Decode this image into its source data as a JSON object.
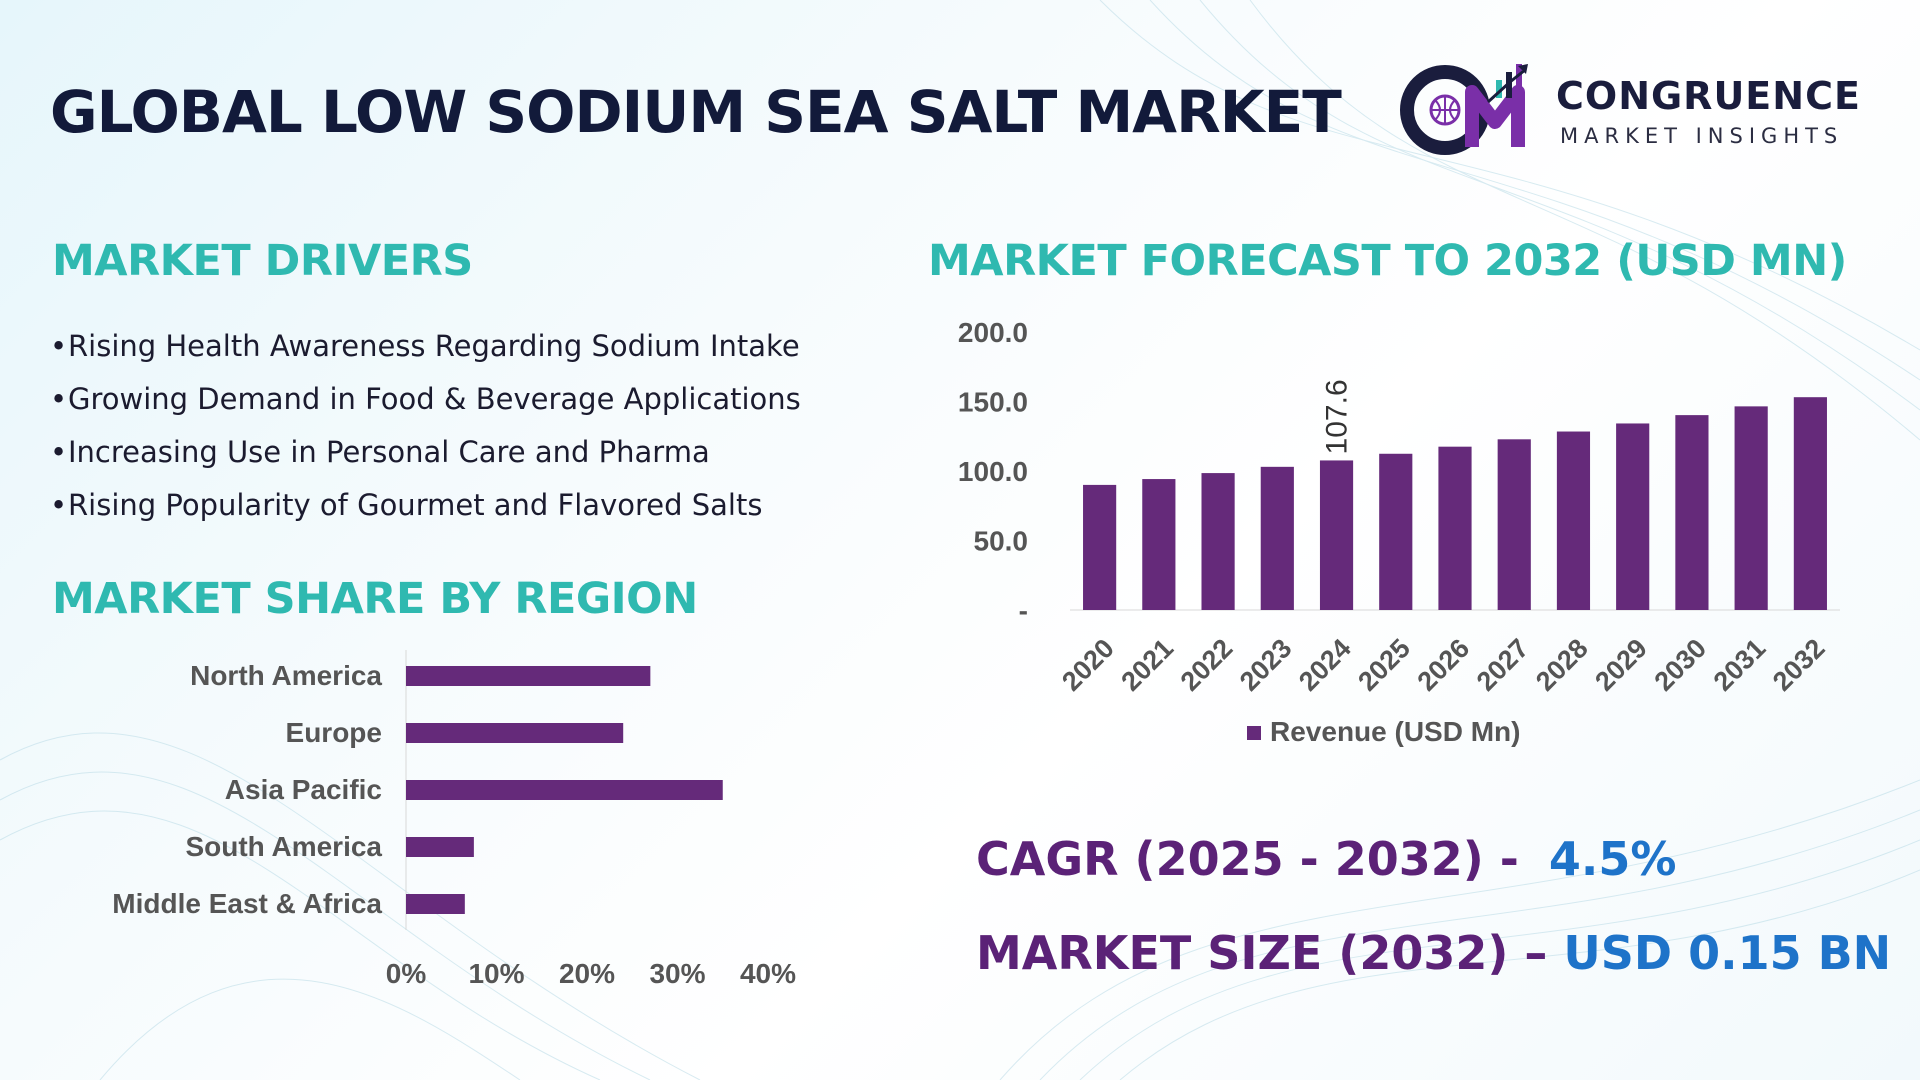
{
  "title": "GLOBAL LOW SODIUM SEA SALT MARKET",
  "logo": {
    "name": "CONGRUENCE",
    "tagline": "MARKET INSIGHTS",
    "mark_letters": "CM",
    "colors": {
      "dark": "#1a1d3d",
      "purple": "#7a2fa8",
      "teal": "#2fb9b0"
    }
  },
  "drivers": {
    "heading": "MARKET DRIVERS",
    "bullet": "•",
    "items": [
      "Rising Health Awareness Regarding Sodium Intake",
      "Growing Demand in Food & Beverage Applications",
      "Increasing Use in Personal Care and Pharma",
      "Rising Popularity of Gourmet and Flavored Salts"
    ]
  },
  "region": {
    "heading": "MARKET SHARE BY REGION"
  },
  "forecast": {
    "heading": "MARKET FORECAST TO 2032 (USD MN)"
  },
  "stats": {
    "cagr_label": "CAGR (2025 - 2032) -",
    "cagr_value": "4.5%",
    "size_label": "MARKET SIZE (2032) –",
    "size_value": "USD 0.15 BN"
  },
  "colors": {
    "bar": "#652a7a",
    "heading_teal": "#2fb9b0",
    "title_navy": "#121a3a",
    "stat_purple": "#5b2277",
    "stat_blue": "#1e73c9",
    "axis_text": "#555555"
  },
  "chart_data": [
    {
      "type": "bar",
      "orientation": "horizontal",
      "categories": [
        "North America",
        "Europe",
        "Asia Pacific",
        "South America",
        "Middle East & Africa"
      ],
      "values": [
        27,
        24,
        35,
        7.5,
        6.5
      ],
      "xlim": [
        0,
        40
      ],
      "xticks": [
        "0%",
        "10%",
        "20%",
        "30%",
        "40%"
      ],
      "grid": false,
      "legend": "none"
    },
    {
      "type": "bar",
      "categories": [
        "2020",
        "2021",
        "2022",
        "2023",
        "2024",
        "2025",
        "2026",
        "2027",
        "2028",
        "2029",
        "2030",
        "2031",
        "2032"
      ],
      "series": [
        {
          "name": "Revenue (USD Mn)",
          "values": [
            90,
            94.2,
            98.5,
            103,
            107.6,
            112.4,
            117.5,
            122.8,
            128.4,
            134.2,
            140.2,
            146.5,
            153.1
          ]
        }
      ],
      "data_labels": [
        {
          "category": "2024",
          "text": "107.6"
        }
      ],
      "ylim": [
        0,
        200
      ],
      "yticks": [
        "-",
        "50.0",
        "100.0",
        "150.0",
        "200.0"
      ],
      "grid": false,
      "legend": "bottom"
    }
  ]
}
